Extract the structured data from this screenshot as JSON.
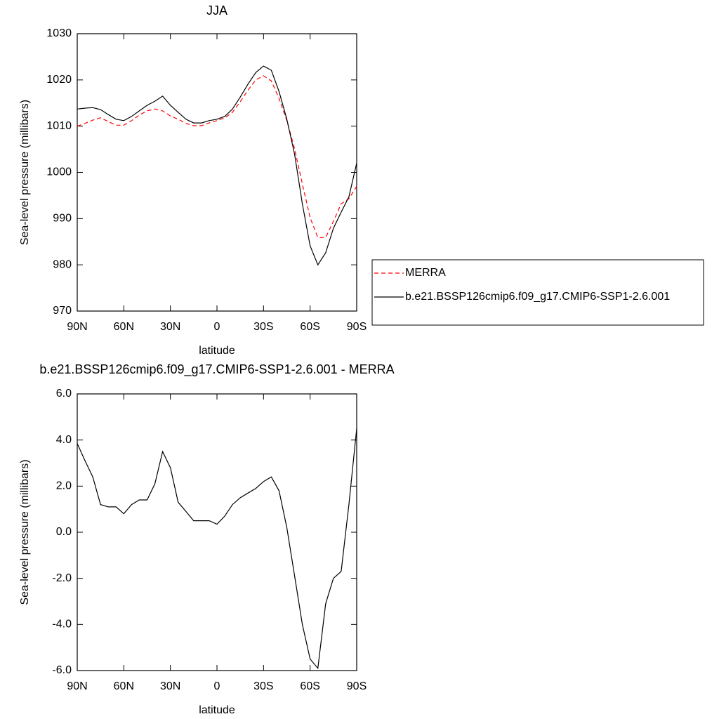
{
  "chart_data": [
    {
      "type": "line",
      "title": "JJA",
      "xlabel": "latitude",
      "ylabel": "Sea-level pressure (millibars)",
      "x": [
        90,
        85,
        80,
        75,
        70,
        65,
        60,
        55,
        50,
        45,
        40,
        35,
        30,
        25,
        20,
        15,
        10,
        5,
        0,
        -5,
        -10,
        -15,
        -20,
        -25,
        -30,
        -35,
        -40,
        -45,
        -50,
        -55,
        -60,
        -65,
        -70,
        -75,
        -80,
        -85,
        -90
      ],
      "series": [
        {
          "name": "MERRA",
          "color": "#ff0000",
          "dashed": true,
          "values": [
            1010.0,
            1010.6,
            1011.3,
            1011.8,
            1011.0,
            1010.2,
            1010.2,
            1011.2,
            1012.4,
            1013.3,
            1013.7,
            1013.3,
            1012.2,
            1011.5,
            1010.6,
            1010.1,
            1010.1,
            1010.7,
            1011.2,
            1011.8,
            1013.0,
            1015.3,
            1017.8,
            1020.0,
            1020.9,
            1019.8,
            1016.0,
            1011.2,
            1005.1,
            997.5,
            990.2,
            985.9,
            985.9,
            989.4,
            993.2,
            994.3,
            997.0
          ]
        },
        {
          "name": "b.e21.BSSP126cmip6.f09_g17.CMIP6-SSP1-2.6.001",
          "color": "#000000",
          "dashed": false,
          "values": [
            1013.7,
            1013.9,
            1014.0,
            1013.6,
            1012.5,
            1011.5,
            1011.2,
            1012.1,
            1013.3,
            1014.5,
            1015.4,
            1016.5,
            1014.5,
            1013.0,
            1011.5,
            1010.7,
            1010.7,
            1011.2,
            1011.5,
            1012.1,
            1013.7,
            1016.3,
            1019.1,
            1021.6,
            1023.0,
            1022.1,
            1017.5,
            1011.5,
            1003.9,
            993.2,
            984.1,
            980.0,
            982.6,
            987.9,
            991.4,
            994.7,
            1002.0
          ]
        }
      ],
      "xlim": [
        90,
        -90
      ],
      "xticks": [
        {
          "value": 90,
          "label": "90N"
        },
        {
          "value": 60,
          "label": "60N"
        },
        {
          "value": 30,
          "label": "30N"
        },
        0,
        {
          "value": -30,
          "label": "30S"
        },
        {
          "value": -60,
          "label": "60S"
        },
        {
          "value": -90,
          "label": "90S"
        }
      ],
      "ylim": [
        970,
        1030
      ],
      "yticks": [
        970,
        980,
        990,
        1000,
        1010,
        1020,
        1030
      ],
      "legend": "right"
    },
    {
      "type": "line",
      "title": "b.e21.BSSP126cmip6.f09_g17.CMIP6-SSP1-2.6.001 - MERRA",
      "xlabel": "latitude",
      "ylabel": "Sea-level pressure (millibars)",
      "x": [
        90,
        85,
        80,
        75,
        70,
        65,
        60,
        55,
        50,
        45,
        40,
        35,
        30,
        25,
        20,
        15,
        10,
        5,
        0,
        -5,
        -10,
        -15,
        -20,
        -25,
        -30,
        -35,
        -40,
        -45,
        -50,
        -55,
        -60,
        -65,
        -70,
        -75,
        -80,
        -85,
        -90
      ],
      "values": [
        3.85,
        3.1,
        2.4,
        1.2,
        1.1,
        1.1,
        0.8,
        1.2,
        1.4,
        1.4,
        2.1,
        3.5,
        2.8,
        1.3,
        0.9,
        0.5,
        0.5,
        0.5,
        0.35,
        0.7,
        1.2,
        1.5,
        1.7,
        1.9,
        2.2,
        2.4,
        1.8,
        0.2,
        -1.9,
        -4.0,
        -5.5,
        -5.9,
        -3.1,
        -2.0,
        -1.7,
        1.2,
        4.5
      ],
      "color": "#000000",
      "xlim": [
        90,
        -90
      ],
      "xticks": [
        {
          "value": 90,
          "label": "90N"
        },
        {
          "value": 60,
          "label": "60N"
        },
        {
          "value": 30,
          "label": "30N"
        },
        0,
        {
          "value": -30,
          "label": "30S"
        },
        {
          "value": -60,
          "label": "60S"
        },
        {
          "value": -90,
          "label": "90S"
        }
      ],
      "ylim": [
        -6,
        6
      ],
      "yticks": [
        {
          "value": -6,
          "label": "-6.0"
        },
        {
          "value": -4,
          "label": "-4.0"
        },
        {
          "value": -2,
          "label": "-2.0"
        },
        {
          "value": 0,
          "label": "0.0"
        },
        {
          "value": 2,
          "label": "2.0"
        },
        {
          "value": 4,
          "label": "4.0"
        },
        {
          "value": 6,
          "label": "6.0"
        }
      ]
    }
  ]
}
